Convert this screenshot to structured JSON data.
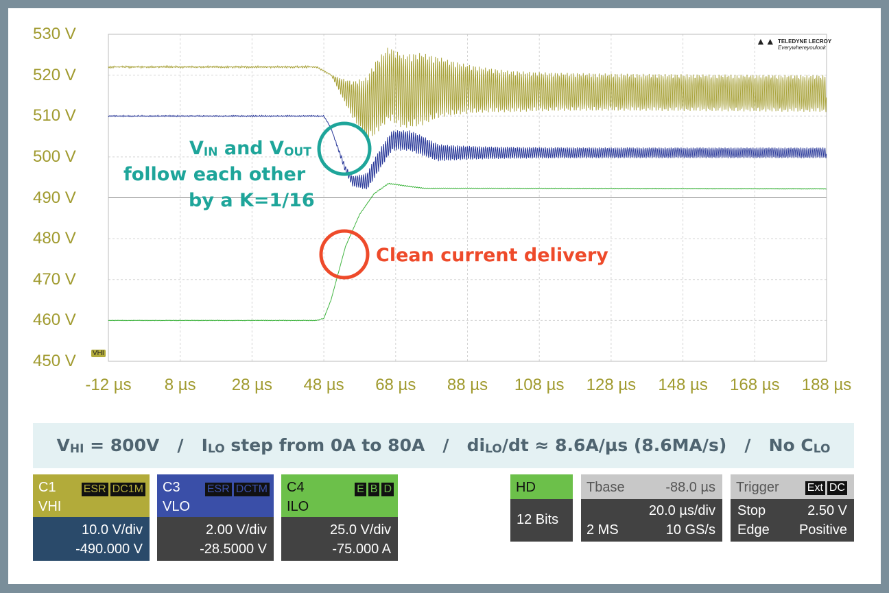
{
  "chart_data": {
    "type": "line",
    "xlim": [
      -12,
      188
    ],
    "ylim": [
      450,
      530
    ],
    "x_ticks": [
      "-12 µs",
      "8 µs",
      "28 µs",
      "48 µs",
      "68 µs",
      "88 µs",
      "108 µs",
      "128 µs",
      "148 µs",
      "168 µs",
      "188 µs"
    ],
    "y_ticks": [
      "530 V",
      "520 V",
      "510 V",
      "500 V",
      "490 V",
      "480 V",
      "470 V",
      "460 V",
      "450 V"
    ],
    "grid": true,
    "series": [
      {
        "name": "VHI",
        "color": "#a8a23a",
        "x": [
          -12,
          46,
          50,
          56,
          60,
          66,
          70,
          80,
          100,
          188
        ],
        "y": [
          522,
          522,
          520,
          514,
          512,
          518,
          516,
          517,
          516,
          515.5
        ]
      },
      {
        "name": "VLO",
        "color": "#2b3a9a",
        "x": [
          -12,
          48,
          50,
          54,
          56,
          60,
          64,
          67,
          72,
          80,
          90,
          188
        ],
        "y": [
          510,
          510,
          507,
          497,
          494,
          494,
          500,
          504,
          504,
          501,
          501,
          501
        ]
      },
      {
        "name": "ILO",
        "color": "#3fb43f",
        "x": [
          -12,
          46,
          48,
          50,
          54,
          58,
          62,
          66,
          70,
          76,
          90,
          188
        ],
        "y": [
          460,
          460,
          460.5,
          465,
          478,
          486,
          491,
          493.5,
          493,
          492.3,
          492.3,
          492.2
        ]
      }
    ]
  },
  "marker": "VHI",
  "logo": {
    "name": "TELEDYNE LECROY",
    "tagline": "Everywhereyoulook"
  },
  "annotations": {
    "v_in": "V",
    "v_in_sub": "IN",
    "and": " and V",
    "v_out_sub": "OUT",
    "line2": "follow each other",
    "line3": "by a K=1/16",
    "clean": "Clean current delivery",
    "teal": "#1ea59a",
    "red": "#ee4a2a"
  },
  "banner": {
    "v": "V",
    "v_sub": "HI",
    "p1": " = 800V   /   ",
    "i": "I",
    "i_sub": "LO",
    "p2": " step from 0A to 80A   /   di",
    "di_sub": "LO",
    "p3": "/dt ≈ 8.6A/µs (8.6MA/s)   /   No C",
    "c_sub": "LO"
  },
  "channels": [
    {
      "id": "C1",
      "label": "VHI",
      "tags": [
        "ESR",
        "DC1M"
      ],
      "scale": "10.0 V/div",
      "offset": "-490.000 V",
      "color": "#b2ab3a"
    },
    {
      "id": "C3",
      "label": "VLO",
      "tags": [
        "ESR",
        "DCTM"
      ],
      "scale": "2.00 V/div",
      "offset": "-28.5000 V",
      "color": "#3a4fa8"
    },
    {
      "id": "C4",
      "label": "ILO",
      "tags": [
        "E",
        "B",
        "D"
      ],
      "scale": "25.0 V/div",
      "offset": "-75.000 A",
      "color": "#6cc04a"
    }
  ],
  "hd": {
    "label": "HD",
    "bits": "12 Bits"
  },
  "timebase": {
    "label": "Tbase",
    "delay": "-88.0 µs",
    "scale": "20.0 µs/div",
    "memory": "2 MS",
    "rate": "10 GS/s"
  },
  "trigger": {
    "label": "Trigger",
    "tags": [
      "Ext",
      "DC"
    ],
    "mode": "Stop",
    "level": "2.50 V",
    "type": "Edge",
    "slope": "Positive"
  }
}
